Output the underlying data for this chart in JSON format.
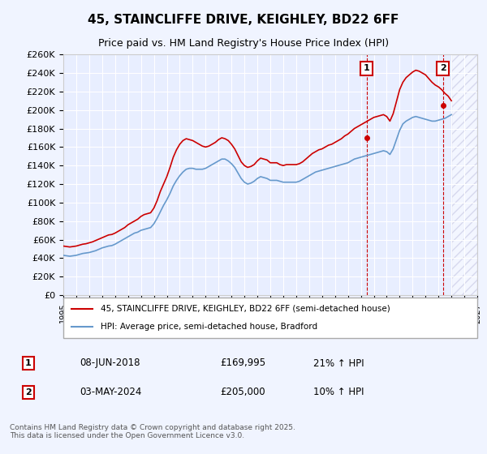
{
  "title": "45, STAINCLIFFE DRIVE, KEIGHLEY, BD22 6FF",
  "subtitle": "Price paid vs. HM Land Registry's House Price Index (HPI)",
  "ylabel_ticks": [
    "£0",
    "£20K",
    "£40K",
    "£60K",
    "£80K",
    "£100K",
    "£120K",
    "£140K",
    "£160K",
    "£180K",
    "£200K",
    "£220K",
    "£240K",
    "£260K"
  ],
  "ylim": [
    0,
    260000
  ],
  "xlim": [
    1995,
    2027
  ],
  "background_color": "#f0f4ff",
  "plot_bg_color": "#e8eeff",
  "grid_color": "#ffffff",
  "transaction1_date": 2018.44,
  "transaction1_label": "1",
  "transaction1_price": 169995,
  "transaction2_date": 2024.34,
  "transaction2_label": "2",
  "transaction2_price": 205000,
  "legend_line1": "45, STAINCLIFFE DRIVE, KEIGHLEY, BD22 6FF (semi-detached house)",
  "legend_line2": "HPI: Average price, semi-detached house, Bradford",
  "annotation1_date": "08-JUN-2018",
  "annotation1_price": "£169,995",
  "annotation1_hpi": "21% ↑ HPI",
  "annotation2_date": "03-MAY-2024",
  "annotation2_price": "£205,000",
  "annotation2_hpi": "10% ↑ HPI",
  "footnote": "Contains HM Land Registry data © Crown copyright and database right 2025.\nThis data is licensed under the Open Government Licence v3.0.",
  "red_line_color": "#cc0000",
  "blue_line_color": "#6699cc",
  "hpi_data": {
    "years": [
      1995.0,
      1995.25,
      1995.5,
      1995.75,
      1996.0,
      1996.25,
      1996.5,
      1996.75,
      1997.0,
      1997.25,
      1997.5,
      1997.75,
      1998.0,
      1998.25,
      1998.5,
      1998.75,
      1999.0,
      1999.25,
      1999.5,
      1999.75,
      2000.0,
      2000.25,
      2000.5,
      2000.75,
      2001.0,
      2001.25,
      2001.5,
      2001.75,
      2002.0,
      2002.25,
      2002.5,
      2002.75,
      2003.0,
      2003.25,
      2003.5,
      2003.75,
      2004.0,
      2004.25,
      2004.5,
      2004.75,
      2005.0,
      2005.25,
      2005.5,
      2005.75,
      2006.0,
      2006.25,
      2006.5,
      2006.75,
      2007.0,
      2007.25,
      2007.5,
      2007.75,
      2008.0,
      2008.25,
      2008.5,
      2008.75,
      2009.0,
      2009.25,
      2009.5,
      2009.75,
      2010.0,
      2010.25,
      2010.5,
      2010.75,
      2011.0,
      2011.25,
      2011.5,
      2011.75,
      2012.0,
      2012.25,
      2012.5,
      2012.75,
      2013.0,
      2013.25,
      2013.5,
      2013.75,
      2014.0,
      2014.25,
      2014.5,
      2014.75,
      2015.0,
      2015.25,
      2015.5,
      2015.75,
      2016.0,
      2016.25,
      2016.5,
      2016.75,
      2017.0,
      2017.25,
      2017.5,
      2017.75,
      2018.0,
      2018.25,
      2018.5,
      2018.75,
      2019.0,
      2019.25,
      2019.5,
      2019.75,
      2020.0,
      2020.25,
      2020.5,
      2020.75,
      2021.0,
      2021.25,
      2021.5,
      2021.75,
      2022.0,
      2022.25,
      2022.5,
      2022.75,
      2023.0,
      2023.25,
      2023.5,
      2023.75,
      2024.0,
      2024.25,
      2024.5,
      2024.75,
      2025.0
    ],
    "values": [
      43000,
      42500,
      42000,
      42500,
      43000,
      44000,
      45000,
      45500,
      46000,
      47000,
      48000,
      49500,
      51000,
      52000,
      53000,
      53500,
      55000,
      57000,
      59000,
      61000,
      63000,
      65000,
      67000,
      68000,
      70000,
      71000,
      72000,
      73000,
      77000,
      83000,
      90000,
      97000,
      103000,
      110000,
      118000,
      124000,
      129000,
      133000,
      136000,
      137000,
      137000,
      136000,
      136000,
      136000,
      137000,
      139000,
      141000,
      143000,
      145000,
      147000,
      147000,
      145000,
      142000,
      138000,
      132000,
      126000,
      122000,
      120000,
      121000,
      123000,
      126000,
      128000,
      127000,
      126000,
      124000,
      124000,
      124000,
      123000,
      122000,
      122000,
      122000,
      122000,
      122000,
      123000,
      125000,
      127000,
      129000,
      131000,
      133000,
      134000,
      135000,
      136000,
      137000,
      138000,
      139000,
      140000,
      141000,
      142000,
      143000,
      145000,
      147000,
      148000,
      149000,
      150000,
      151000,
      152000,
      153000,
      154000,
      155000,
      156000,
      155000,
      152000,
      158000,
      168000,
      178000,
      185000,
      188000,
      190000,
      192000,
      193000,
      192000,
      191000,
      190000,
      189000,
      188000,
      188000,
      189000,
      190000,
      191000,
      193000,
      195000
    ]
  },
  "price_data": {
    "years": [
      1995.0,
      1995.25,
      1995.5,
      1995.75,
      1996.0,
      1996.25,
      1996.5,
      1996.75,
      1997.0,
      1997.25,
      1997.5,
      1997.75,
      1998.0,
      1998.25,
      1998.5,
      1998.75,
      1999.0,
      1999.25,
      1999.5,
      1999.75,
      2000.0,
      2000.25,
      2000.5,
      2000.75,
      2001.0,
      2001.25,
      2001.5,
      2001.75,
      2002.0,
      2002.25,
      2002.5,
      2002.75,
      2003.0,
      2003.25,
      2003.5,
      2003.75,
      2004.0,
      2004.25,
      2004.5,
      2004.75,
      2005.0,
      2005.25,
      2005.5,
      2005.75,
      2006.0,
      2006.25,
      2006.5,
      2006.75,
      2007.0,
      2007.25,
      2007.5,
      2007.75,
      2008.0,
      2008.25,
      2008.5,
      2008.75,
      2009.0,
      2009.25,
      2009.5,
      2009.75,
      2010.0,
      2010.25,
      2010.5,
      2010.75,
      2011.0,
      2011.25,
      2011.5,
      2011.75,
      2012.0,
      2012.25,
      2012.5,
      2012.75,
      2013.0,
      2013.25,
      2013.5,
      2013.75,
      2014.0,
      2014.25,
      2014.5,
      2014.75,
      2015.0,
      2015.25,
      2015.5,
      2015.75,
      2016.0,
      2016.25,
      2016.5,
      2016.75,
      2017.0,
      2017.25,
      2017.5,
      2017.75,
      2018.0,
      2018.25,
      2018.5,
      2018.75,
      2019.0,
      2019.25,
      2019.5,
      2019.75,
      2020.0,
      2020.25,
      2020.5,
      2020.75,
      2021.0,
      2021.25,
      2021.5,
      2021.75,
      2022.0,
      2022.25,
      2022.5,
      2022.75,
      2023.0,
      2023.25,
      2023.5,
      2023.75,
      2024.0,
      2024.25,
      2024.5,
      2024.75,
      2025.0
    ],
    "values": [
      53000,
      52500,
      52000,
      52500,
      53000,
      54000,
      55000,
      55500,
      56500,
      57500,
      59000,
      60500,
      62000,
      63500,
      65000,
      65500,
      67000,
      69000,
      71000,
      73000,
      76000,
      78000,
      80000,
      82000,
      85000,
      87000,
      88000,
      89000,
      94000,
      102000,
      112000,
      120000,
      128000,
      138000,
      149000,
      157000,
      163000,
      167000,
      169000,
      168000,
      167000,
      165000,
      163000,
      161000,
      160000,
      161000,
      163000,
      165000,
      168000,
      170000,
      169000,
      167000,
      163000,
      158000,
      151000,
      144000,
      140000,
      138000,
      139000,
      141000,
      145000,
      148000,
      147000,
      146000,
      143000,
      143000,
      143000,
      141000,
      140000,
      141000,
      141000,
      141000,
      141000,
      142000,
      144000,
      147000,
      150000,
      153000,
      155000,
      157000,
      158000,
      160000,
      162000,
      163000,
      165000,
      167000,
      169000,
      172000,
      174000,
      177000,
      180000,
      182000,
      184000,
      186000,
      188000,
      190000,
      192000,
      193000,
      194000,
      195000,
      193000,
      188000,
      196000,
      209000,
      222000,
      230000,
      235000,
      238000,
      241000,
      243000,
      242000,
      240000,
      238000,
      234000,
      230000,
      227000,
      225000,
      222000,
      218000,
      215000,
      210000
    ]
  }
}
